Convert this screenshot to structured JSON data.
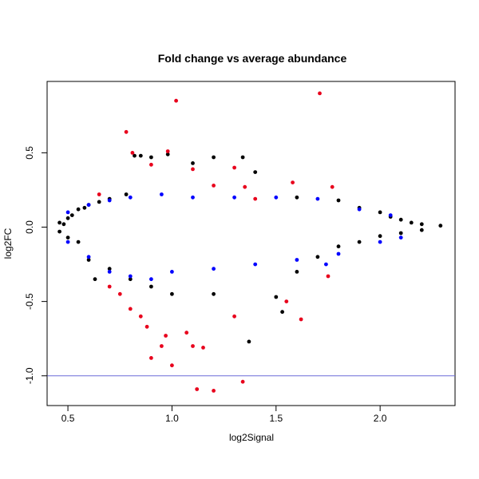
{
  "chart_data": {
    "type": "scatter",
    "title": "Fold change vs average abundance",
    "xlabel": "log2Signal",
    "ylabel": "log2FC",
    "xlim": [
      0.4,
      2.36
    ],
    "ylim": [
      -1.2,
      0.98
    ],
    "x_ticks": [
      0.5,
      1.0,
      1.5,
      2.0
    ],
    "x_tick_labels": [
      "0.5",
      "1.0",
      "1.5",
      "2.0"
    ],
    "y_ticks": [
      -1.0,
      -0.5,
      0.0,
      0.5
    ],
    "y_tick_labels": [
      "-1.0",
      "-0.5",
      "0.0",
      "0.5"
    ],
    "grid": false,
    "hline": {
      "y": -1.0,
      "color": "#6b6bd8"
    },
    "colors": {
      "black": "#000000",
      "blue": "#0000ff",
      "red": "#e8001c"
    },
    "series": [
      {
        "color": "#000000",
        "points": [
          [
            0.46,
            0.03
          ],
          [
            0.48,
            0.02
          ],
          [
            0.5,
            0.06
          ],
          [
            0.52,
            0.08
          ],
          [
            0.55,
            0.12
          ],
          [
            0.58,
            0.13
          ],
          [
            0.6,
            0.15
          ],
          [
            0.65,
            0.17
          ],
          [
            0.7,
            0.19
          ],
          [
            0.78,
            0.22
          ],
          [
            0.82,
            0.48
          ],
          [
            0.85,
            0.48
          ],
          [
            0.9,
            0.47
          ],
          [
            0.98,
            0.49
          ],
          [
            1.1,
            0.43
          ],
          [
            1.2,
            0.47
          ],
          [
            1.34,
            0.47
          ],
          [
            1.4,
            0.37
          ],
          [
            1.6,
            0.2
          ],
          [
            1.8,
            0.18
          ],
          [
            1.9,
            0.13
          ],
          [
            2.0,
            0.1
          ],
          [
            2.05,
            0.07
          ],
          [
            2.1,
            0.05
          ],
          [
            2.15,
            0.03
          ],
          [
            2.2,
            0.02
          ],
          [
            2.29,
            0.01
          ],
          [
            0.46,
            -0.03
          ],
          [
            0.5,
            -0.07
          ],
          [
            0.55,
            -0.1
          ],
          [
            0.6,
            -0.22
          ],
          [
            0.63,
            -0.35
          ],
          [
            0.7,
            -0.28
          ],
          [
            0.8,
            -0.35
          ],
          [
            0.9,
            -0.4
          ],
          [
            1.0,
            -0.45
          ],
          [
            1.2,
            -0.45
          ],
          [
            1.37,
            -0.77
          ],
          [
            1.5,
            -0.47
          ],
          [
            1.53,
            -0.57
          ],
          [
            1.6,
            -0.3
          ],
          [
            1.7,
            -0.2
          ],
          [
            1.8,
            -0.13
          ],
          [
            1.9,
            -0.1
          ],
          [
            2.0,
            -0.06
          ],
          [
            2.1,
            -0.04
          ],
          [
            2.2,
            -0.02
          ]
        ]
      },
      {
        "color": "#0000ff",
        "points": [
          [
            0.5,
            0.1
          ],
          [
            0.6,
            0.15
          ],
          [
            0.7,
            0.18
          ],
          [
            0.8,
            0.2
          ],
          [
            0.95,
            0.22
          ],
          [
            1.1,
            0.2
          ],
          [
            1.3,
            0.2
          ],
          [
            1.5,
            0.2
          ],
          [
            1.7,
            0.19
          ],
          [
            1.9,
            0.12
          ],
          [
            2.05,
            0.08
          ],
          [
            0.5,
            -0.1
          ],
          [
            0.6,
            -0.2
          ],
          [
            0.7,
            -0.3
          ],
          [
            0.8,
            -0.33
          ],
          [
            0.9,
            -0.35
          ],
          [
            1.0,
            -0.3
          ],
          [
            1.2,
            -0.28
          ],
          [
            1.4,
            -0.25
          ],
          [
            1.6,
            -0.22
          ],
          [
            1.74,
            -0.25
          ],
          [
            1.8,
            -0.18
          ],
          [
            2.0,
            -0.1
          ],
          [
            2.1,
            -0.07
          ]
        ]
      },
      {
        "color": "#e8001c",
        "points": [
          [
            0.78,
            0.64
          ],
          [
            0.81,
            0.5
          ],
          [
            0.9,
            0.42
          ],
          [
            0.98,
            0.51
          ],
          [
            1.02,
            0.85
          ],
          [
            1.1,
            0.39
          ],
          [
            1.2,
            0.28
          ],
          [
            1.3,
            0.4
          ],
          [
            1.35,
            0.27
          ],
          [
            1.4,
            0.19
          ],
          [
            1.58,
            0.3
          ],
          [
            1.71,
            0.9
          ],
          [
            1.77,
            0.27
          ],
          [
            0.65,
            0.22
          ],
          [
            0.7,
            -0.4
          ],
          [
            0.75,
            -0.45
          ],
          [
            0.8,
            -0.55
          ],
          [
            0.85,
            -0.6
          ],
          [
            0.88,
            -0.67
          ],
          [
            0.9,
            -0.88
          ],
          [
            0.95,
            -0.8
          ],
          [
            0.97,
            -0.73
          ],
          [
            1.0,
            -0.93
          ],
          [
            1.07,
            -0.71
          ],
          [
            1.1,
            -0.8
          ],
          [
            1.12,
            -1.09
          ],
          [
            1.15,
            -0.81
          ],
          [
            1.2,
            -1.1
          ],
          [
            1.3,
            -0.6
          ],
          [
            1.34,
            -1.04
          ],
          [
            1.55,
            -0.5
          ],
          [
            1.62,
            -0.62
          ],
          [
            1.75,
            -0.33
          ]
        ]
      }
    ]
  }
}
